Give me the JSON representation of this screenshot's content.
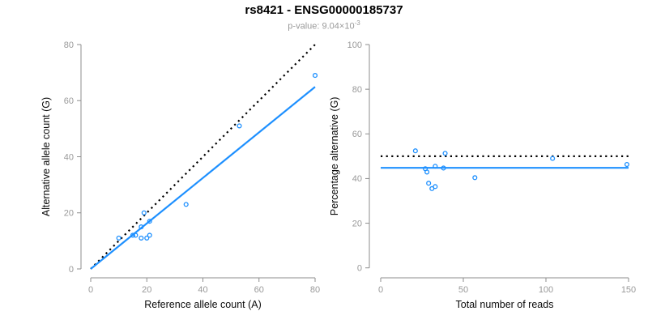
{
  "header": {
    "title": "rs8421 - ENSG00000185737",
    "pvalue_label": "p-value: ",
    "pvalue_base": "9.04×10",
    "pvalue_exponent": "-3"
  },
  "colors": {
    "accent_blue": "#1E90FF",
    "line_black": "#000000",
    "axis_line": "#8e8e8e",
    "tick_text": "#999999",
    "axis_title_text": "#0a0a0a",
    "background": "#ffffff"
  },
  "chart_data": [
    {
      "id": "allele-counts-scatter",
      "type": "scatter",
      "xlabel": "Reference allele count (A)",
      "ylabel": "Alternative allele count (G)",
      "xlim": [
        0,
        80
      ],
      "ylim": [
        0,
        80
      ],
      "xticks": [
        0,
        20,
        40,
        60,
        80
      ],
      "yticks": [
        0,
        20,
        40,
        60,
        80
      ],
      "grid": false,
      "legend": null,
      "marker": "open-circle",
      "points": [
        [
          10,
          11
        ],
        [
          15,
          12
        ],
        [
          16,
          12
        ],
        [
          18,
          11
        ],
        [
          18,
          15
        ],
        [
          19,
          20
        ],
        [
          20,
          11
        ],
        [
          21,
          12
        ],
        [
          21,
          17
        ],
        [
          34,
          23
        ],
        [
          53,
          51
        ],
        [
          80,
          69
        ]
      ],
      "lines": [
        {
          "name": "identity-line",
          "style": "dotted",
          "color": "#000000",
          "x1": 0,
          "y1": 0,
          "x2": 80,
          "y2": 80
        },
        {
          "name": "fit-line",
          "style": "solid",
          "color": "#1E90FF",
          "x1": 0,
          "y1": 0,
          "x2": 80,
          "y2": 64.9
        }
      ]
    },
    {
      "id": "percentage-scatter",
      "type": "scatter",
      "xlabel": "Total number of reads",
      "ylabel": "Percentage alternative (G)",
      "xlim": [
        0,
        150
      ],
      "ylim": [
        0,
        100
      ],
      "xticks": [
        0,
        50,
        100,
        150
      ],
      "yticks": [
        0,
        20,
        40,
        60,
        80,
        100
      ],
      "grid": false,
      "legend": null,
      "marker": "open-circle",
      "points": [
        [
          21,
          52.4
        ],
        [
          27,
          44.4
        ],
        [
          28,
          42.9
        ],
        [
          29,
          37.9
        ],
        [
          31,
          35.5
        ],
        [
          33,
          36.4
        ],
        [
          33,
          45.5
        ],
        [
          38,
          44.7
        ],
        [
          39,
          51.3
        ],
        [
          57,
          40.4
        ],
        [
          104,
          49.0
        ],
        [
          149,
          46.3
        ]
      ],
      "lines": [
        {
          "name": "expected-percentage-line",
          "style": "dotted",
          "color": "#000000",
          "x1": 0,
          "y1": 50,
          "x2": 150,
          "y2": 50
        },
        {
          "name": "mean-percentage-line",
          "style": "solid",
          "color": "#1E90FF",
          "x1": 0,
          "y1": 44.8,
          "x2": 150,
          "y2": 44.8
        }
      ]
    }
  ]
}
